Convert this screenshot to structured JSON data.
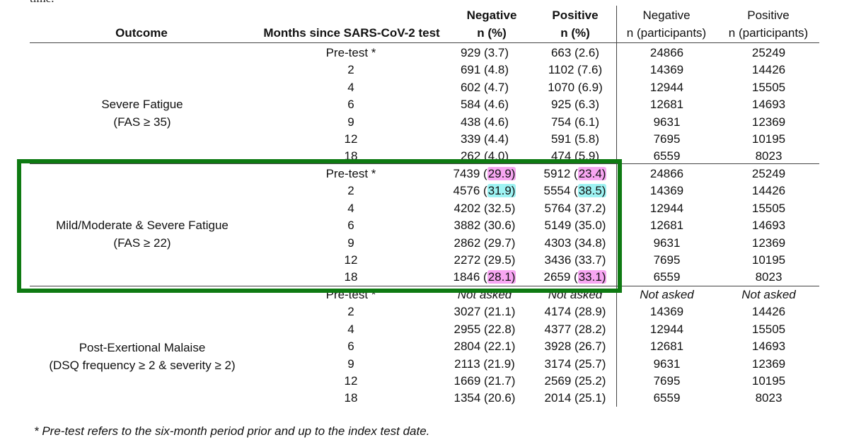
{
  "top_cut_text": "time.",
  "headers": {
    "outcome": "Outcome",
    "months": "Months since SARS-CoV-2 test",
    "neg_pct_line1": "Negative",
    "neg_pct_line2": "n (%)",
    "pos_pct_line1": "Positive",
    "pos_pct_line2": "n (%)",
    "neg_n_line1": "Negative",
    "neg_n_line2": "n (participants)",
    "pos_n_line1": "Positive",
    "pos_n_line2": "n (participants)"
  },
  "groups": [
    {
      "name_line1": "Severe Fatigue",
      "name_line2": "(FAS ≥ 35)",
      "rows": [
        {
          "month": "Pre-test *",
          "neg": "929 (3.7)",
          "pos": "663 (2.6)",
          "neg_n": "24866",
          "pos_n": "25249"
        },
        {
          "month": "2",
          "neg": "691 (4.8)",
          "pos": "1102 (7.6)",
          "neg_n": "14369",
          "pos_n": "14426"
        },
        {
          "month": "4",
          "neg": "602 (4.7)",
          "pos": "1070 (6.9)",
          "neg_n": "12944",
          "pos_n": "15505"
        },
        {
          "month": "6",
          "neg": "584 (4.6)",
          "pos": "925 (6.3)",
          "neg_n": "12681",
          "pos_n": "14693"
        },
        {
          "month": "9",
          "neg": "438 (4.6)",
          "pos": "754 (6.1)",
          "neg_n": "9631",
          "pos_n": "12369"
        },
        {
          "month": "12",
          "neg": "339 (4.4)",
          "pos": "591 (5.8)",
          "neg_n": "7695",
          "pos_n": "10195"
        },
        {
          "month": "18",
          "neg": "262 (4.0)",
          "pos": "474 (5.9)",
          "neg_n": "6559",
          "pos_n": "8023"
        }
      ]
    },
    {
      "name_line1": "Mild/Moderate & Severe Fatigue",
      "name_line2": "(FAS ≥ 22)",
      "rows": [
        {
          "month": "Pre-test *",
          "neg_a": "7439 (",
          "neg_h": "29.9)",
          "neg_hl": "pink",
          "pos_a": "5912 (",
          "pos_h": "23.4)",
          "pos_hl": "pink",
          "neg_n": "24866",
          "pos_n": "25249"
        },
        {
          "month": "2",
          "neg_a": "4576 (",
          "neg_h": "31.9)",
          "neg_hl": "cyan",
          "pos_a": "5554 (",
          "pos_h": "38.5)",
          "pos_hl": "cyan",
          "neg_n": "14369",
          "pos_n": "14426"
        },
        {
          "month": "4",
          "neg": "4202 (32.5)",
          "pos": "5764 (37.2)",
          "neg_n": "12944",
          "pos_n": "15505"
        },
        {
          "month": "6",
          "neg": "3882 (30.6)",
          "pos": "5149 (35.0)",
          "neg_n": "12681",
          "pos_n": "14693"
        },
        {
          "month": "9",
          "neg": "2862 (29.7)",
          "pos": "4303 (34.8)",
          "neg_n": "9631",
          "pos_n": "12369"
        },
        {
          "month": "12",
          "neg": "2272 (29.5)",
          "pos": "3436 (33.7)",
          "neg_n": "7695",
          "pos_n": "10195"
        },
        {
          "month": "18",
          "neg_a": "1846 (",
          "neg_h": "28.1)",
          "neg_hl": "pink",
          "pos_a": "2659 (",
          "pos_h": "33.1)",
          "pos_hl": "pink",
          "neg_n": "6559",
          "pos_n": "8023"
        }
      ]
    },
    {
      "name_line1": "Post-Exertional Malaise",
      "name_line2": "(DSQ frequency ≥ 2 & severity ≥ 2)",
      "rows": [
        {
          "month": "Pre-test *",
          "neg": "Not asked",
          "pos": "Not asked",
          "neg_n": "Not asked",
          "pos_n": "Not asked",
          "italic": true
        },
        {
          "month": "2",
          "neg": "3027 (21.1)",
          "pos": "4174 (28.9)",
          "neg_n": "14369",
          "pos_n": "14426"
        },
        {
          "month": "4",
          "neg": "2955 (22.8)",
          "pos": "4377 (28.2)",
          "neg_n": "12944",
          "pos_n": "15505"
        },
        {
          "month": "6",
          "neg": "2804 (22.1)",
          "pos": "3928 (26.7)",
          "neg_n": "12681",
          "pos_n": "14693"
        },
        {
          "month": "9",
          "neg": "2113 (21.9)",
          "pos": "3174 (25.7)",
          "neg_n": "9631",
          "pos_n": "12369"
        },
        {
          "month": "12",
          "neg": "1669 (21.7)",
          "pos": "2569 (25.2)",
          "neg_n": "7695",
          "pos_n": "10195"
        },
        {
          "month": "18",
          "neg": "1354 (20.6)",
          "pos": "2014 (25.1)",
          "neg_n": "6559",
          "pos_n": "8023"
        }
      ]
    }
  ],
  "footnote": "* Pre-test refers to the six-month period prior and up to the index test date."
}
